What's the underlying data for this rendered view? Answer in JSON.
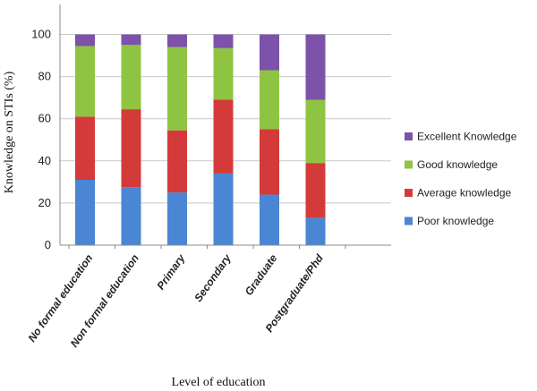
{
  "chart_data": {
    "type": "bar",
    "stacked": true,
    "categories": [
      "No formal education",
      "Non formal education",
      "Primary",
      "Secondary",
      "Graduate",
      "Postgraduate/Phd"
    ],
    "series": [
      {
        "name": "Poor knowledge",
        "color": "#4a86d4",
        "values": [
          31,
          27.5,
          25,
          34,
          24,
          13
        ]
      },
      {
        "name": "Average knowledge",
        "color": "#d53a3a",
        "values": [
          30,
          37,
          29.5,
          35,
          31,
          26
        ]
      },
      {
        "name": "Good knowledge",
        "color": "#8fc442",
        "values": [
          33.5,
          30.5,
          39.5,
          24.5,
          28,
          30
        ]
      },
      {
        "name": "Excellent Knowledge",
        "color": "#7c53a8",
        "values": [
          5.5,
          5,
          6,
          6.5,
          17,
          31
        ]
      }
    ],
    "title": "",
    "xlabel": "Level of education",
    "ylabel": "Knowledge on STIs (%)",
    "ylim": [
      0,
      100
    ],
    "yticks": [
      0,
      20,
      40,
      60,
      80,
      100
    ],
    "grid": true,
    "legend_position": "right"
  }
}
